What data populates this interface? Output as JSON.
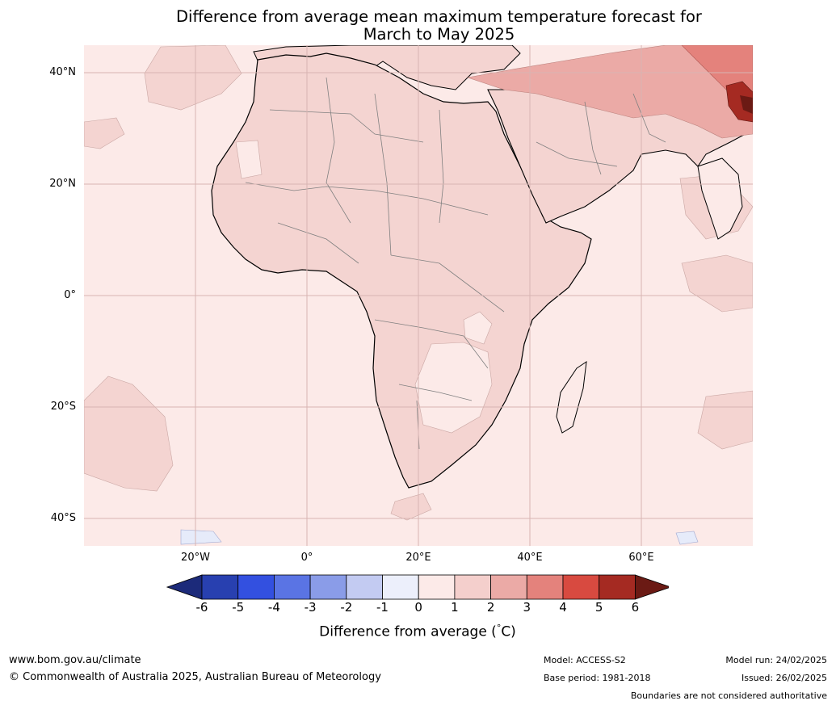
{
  "title_line1": "Difference from average mean maximum temperature forecast for",
  "title_line2": "March to May 2025",
  "lat_labels": [
    "40°N",
    "20°N",
    "0°",
    "20°S",
    "40°S"
  ],
  "lon_labels": [
    "20°W",
    "0°",
    "20°E",
    "40°E",
    "60°E"
  ],
  "colorbar": {
    "ticks": [
      "-6",
      "-5",
      "-4",
      "-3",
      "-2",
      "-1",
      "0",
      "1",
      "2",
      "3",
      "4",
      "5",
      "6"
    ],
    "colors": [
      "#1c2a7a",
      "#2840b0",
      "#3350e0",
      "#5a74e4",
      "#8a9ce8",
      "#c3cbf2",
      "#eceffb",
      "#fceae8",
      "#f4cfcc",
      "#ebaaa6",
      "#e4827c",
      "#d84a40",
      "#a52a22",
      "#6b1a14"
    ],
    "title": "Difference from average (",
    "title_symbol": "°",
    "title_unit": "C)"
  },
  "map_colors": {
    "ocean_base": "#fceae8",
    "land_anomaly": "#f4d4d1",
    "warm_2_3": "#ebaaa6",
    "warm_3_4": "#e4827c",
    "warm_5_6": "#a52a22",
    "cool": "#e6ebfa",
    "coast": "#000000",
    "borders": "#808080",
    "grid": "#d8b4b2"
  },
  "footer": {
    "url": "www.bom.gov.au/climate",
    "copyright": "© Commonwealth of Australia 2025, Australian Bureau of Meteorology",
    "model": "Model: ACCESS-S2",
    "base_period": "Base period: 1981-2018",
    "model_run": "Model run: 24/02/2025",
    "issued": "Issued: 26/02/2025",
    "disclaimer": "Boundaries are not considered authoritative"
  }
}
